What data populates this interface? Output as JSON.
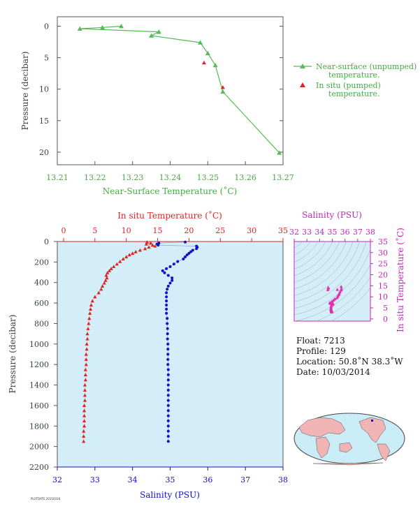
{
  "chart_data": [
    {
      "type": "line",
      "id": "near_surface",
      "xlabel": "Near-Surface Temperature (˚C)",
      "ylabel": "Pressure (decibar)",
      "xlim": [
        13.21,
        13.27
      ],
      "ylim": [
        22,
        -1.5
      ],
      "xticks": [
        "13.21",
        "13.22",
        "13.23",
        "13.24",
        "13.25",
        "13.26",
        "13.27"
      ],
      "yticks": [
        "0",
        "5",
        "10",
        "15",
        "20"
      ],
      "series": [
        {
          "name": "Near-surface (unpumped) temperature.",
          "color": "#55bb55",
          "points": [
            [
              13.227,
              0.0
            ],
            [
              13.222,
              0.2
            ],
            [
              13.216,
              0.4
            ],
            [
              13.237,
              0.9
            ],
            [
              13.235,
              1.5
            ],
            [
              13.248,
              2.6
            ],
            [
              13.25,
              4.3
            ],
            [
              13.252,
              6.2
            ],
            [
              13.254,
              10.4
            ],
            [
              13.269,
              20.1
            ]
          ]
        },
        {
          "name": "In situ (pumped) temperature.",
          "color": "#dd2222",
          "points": [
            [
              13.249,
              5.8
            ],
            [
              13.254,
              9.7
            ]
          ]
        }
      ],
      "legend": [
        "Near-surface (unpumped)",
        "temperature.",
        "In situ (pumped)",
        "temperature."
      ]
    },
    {
      "type": "scatter",
      "id": "profile",
      "xlabel_top": "In situ Temperature (˚C)",
      "xlabel_bottom": "Salinity (PSU)",
      "ylabel": "Pressure (decibar)",
      "temp_lim": [
        -1,
        35
      ],
      "sal_lim": [
        32,
        38
      ],
      "ylim": [
        0,
        2200
      ],
      "temp_ticks": [
        "0",
        "5",
        "10",
        "15",
        "20",
        "25",
        "30",
        "35"
      ],
      "sal_ticks": [
        "32",
        "33",
        "34",
        "35",
        "36",
        "37",
        "38"
      ],
      "yticks": [
        "0",
        "200",
        "400",
        "600",
        "800",
        "1000",
        "1200",
        "1400",
        "1600",
        "1800",
        "2000",
        "2200"
      ],
      "temperature_color": "#dd2222",
      "salinity_color": "#1111cc",
      "temperature": [
        [
          13.3,
          5
        ],
        [
          13.9,
          15
        ],
        [
          13.2,
          25
        ],
        [
          14.2,
          35
        ],
        [
          14.6,
          45
        ],
        [
          13.6,
          55
        ],
        [
          13.0,
          70
        ],
        [
          12.2,
          85
        ],
        [
          11.5,
          100
        ],
        [
          11.0,
          115
        ],
        [
          10.5,
          130
        ],
        [
          10.0,
          150
        ],
        [
          9.5,
          170
        ],
        [
          9.0,
          195
        ],
        [
          8.5,
          220
        ],
        [
          8.0,
          245
        ],
        [
          7.6,
          265
        ],
        [
          7.3,
          285
        ],
        [
          7.0,
          305
        ],
        [
          6.8,
          330
        ],
        [
          6.9,
          355
        ],
        [
          6.7,
          380
        ],
        [
          6.5,
          405
        ],
        [
          6.2,
          435
        ],
        [
          6.0,
          465
        ],
        [
          5.6,
          500
        ],
        [
          5.0,
          540
        ],
        [
          4.6,
          580
        ],
        [
          4.4,
          620
        ],
        [
          4.3,
          660
        ],
        [
          4.2,
          700
        ],
        [
          4.1,
          750
        ],
        [
          4.0,
          800
        ],
        [
          3.9,
          850
        ],
        [
          3.8,
          900
        ],
        [
          3.8,
          950
        ],
        [
          3.7,
          1000
        ],
        [
          3.7,
          1050
        ],
        [
          3.6,
          1100
        ],
        [
          3.6,
          1150
        ],
        [
          3.6,
          1200
        ],
        [
          3.5,
          1250
        ],
        [
          3.5,
          1300
        ],
        [
          3.5,
          1350
        ],
        [
          3.4,
          1400
        ],
        [
          3.4,
          1450
        ],
        [
          3.4,
          1500
        ],
        [
          3.4,
          1550
        ],
        [
          3.3,
          1600
        ],
        [
          3.3,
          1650
        ],
        [
          3.3,
          1700
        ],
        [
          3.3,
          1750
        ],
        [
          3.3,
          1800
        ],
        [
          3.2,
          1850
        ],
        [
          3.2,
          1900
        ],
        [
          3.2,
          1950
        ]
      ],
      "salinity": [
        [
          35.4,
          5
        ],
        [
          34.7,
          15
        ],
        [
          34.65,
          25
        ],
        [
          34.68,
          35
        ],
        [
          35.7,
          45
        ],
        [
          35.72,
          55
        ],
        [
          35.7,
          70
        ],
        [
          35.6,
          85
        ],
        [
          35.55,
          100
        ],
        [
          35.5,
          115
        ],
        [
          35.45,
          130
        ],
        [
          35.4,
          150
        ],
        [
          35.35,
          170
        ],
        [
          35.2,
          195
        ],
        [
          35.1,
          220
        ],
        [
          35.0,
          245
        ],
        [
          34.9,
          265
        ],
        [
          34.8,
          285
        ],
        [
          34.85,
          305
        ],
        [
          34.95,
          330
        ],
        [
          35.05,
          355
        ],
        [
          35.05,
          380
        ],
        [
          35.0,
          405
        ],
        [
          34.95,
          435
        ],
        [
          34.92,
          465
        ],
        [
          34.9,
          500
        ],
        [
          34.9,
          540
        ],
        [
          34.9,
          580
        ],
        [
          34.9,
          620
        ],
        [
          34.9,
          660
        ],
        [
          34.9,
          700
        ],
        [
          34.92,
          750
        ],
        [
          34.92,
          800
        ],
        [
          34.93,
          850
        ],
        [
          34.93,
          900
        ],
        [
          34.93,
          950
        ],
        [
          34.94,
          1000
        ],
        [
          34.94,
          1050
        ],
        [
          34.94,
          1100
        ],
        [
          34.94,
          1150
        ],
        [
          34.94,
          1200
        ],
        [
          34.95,
          1250
        ],
        [
          34.95,
          1300
        ],
        [
          34.95,
          1350
        ],
        [
          34.95,
          1400
        ],
        [
          34.95,
          1450
        ],
        [
          34.95,
          1500
        ],
        [
          34.95,
          1550
        ],
        [
          34.95,
          1600
        ],
        [
          34.95,
          1650
        ],
        [
          34.95,
          1700
        ],
        [
          34.95,
          1750
        ],
        [
          34.95,
          1800
        ],
        [
          34.95,
          1850
        ],
        [
          34.95,
          1900
        ],
        [
          34.95,
          1950
        ]
      ]
    },
    {
      "type": "scatter",
      "id": "ts",
      "xlabel": "Salinity (PSU)",
      "ylabel": "In situ Temperature (˚C)",
      "xlim": [
        32,
        38
      ],
      "ylim": [
        -1,
        35
      ],
      "xticks": [
        "32",
        "33",
        "34",
        "35",
        "36",
        "37",
        "38"
      ],
      "yticks": [
        "0",
        "5",
        "10",
        "15",
        "20",
        "25",
        "30",
        "35"
      ],
      "color": "#dd33aa"
    }
  ],
  "info": {
    "float": "Float: 7213",
    "profile": "Profile: 129",
    "location": "Location: 50.8˚N 38.3˚W",
    "date": "Date: 10/03/2014",
    "footer": "PLOTDATE 20150316"
  },
  "colors": {
    "green": "#44aa44",
    "label_green": "#44aa44",
    "red": "#dd2222",
    "blue": "#1111bb",
    "magenta": "#cc22bb",
    "panel_bg": "#d3eef8",
    "dark": "#334433"
  }
}
